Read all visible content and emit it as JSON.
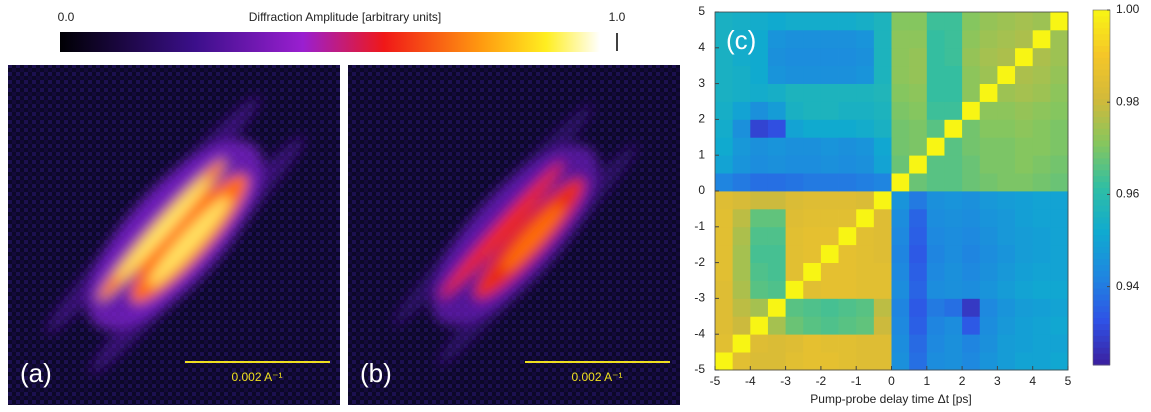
{
  "figure": {
    "colorbar_title": "Diffraction Amplitude [arbitrary units]",
    "colorbar_ticks": [
      {
        "value": 0,
        "label": "0.0"
      },
      {
        "value": 1,
        "label": "1.0"
      }
    ],
    "panels": [
      {
        "label": "(a)",
        "scale_bar": "0.002 A⁻¹"
      },
      {
        "label": "(b)",
        "scale_bar": "0.002 A⁻¹"
      }
    ]
  },
  "chart_data": {
    "type": "heatmap",
    "label": "(c)",
    "xlabel": "Pump-probe delay time Δt [ps]",
    "xlim": [
      -5,
      5
    ],
    "ylim": [
      -5,
      5
    ],
    "xticks": [
      -5,
      -4,
      -3,
      -2,
      -1,
      0,
      1,
      2,
      3,
      4,
      5
    ],
    "yticks": [
      -5,
      -4,
      -3,
      -2,
      -1,
      0,
      1,
      2,
      3,
      4,
      5
    ],
    "x": [
      -4.75,
      -4.25,
      -3.75,
      -3.25,
      -2.75,
      -2.25,
      -1.75,
      -1.25,
      -0.75,
      -0.25,
      0.25,
      0.75,
      1.25,
      1.75,
      2.25,
      2.75,
      3.25,
      3.75,
      4.25,
      4.75
    ],
    "y": [
      -4.75,
      -4.25,
      -3.75,
      -3.25,
      -2.75,
      -2.25,
      -1.75,
      -1.25,
      -0.75,
      -0.25,
      0.25,
      0.75,
      1.25,
      1.75,
      2.25,
      2.75,
      3.25,
      3.75,
      4.25,
      4.75
    ],
    "zlim": [
      0.923,
      1.0
    ],
    "zticks": [
      0.94,
      0.96,
      0.98,
      {
        "value": 1,
        "label": "1.00"
      }
    ],
    "colormap": [
      "#3b1f9e",
      "#2f52e6",
      "#1f86e0",
      "#10aad0",
      "#2fbea4",
      "#86c65e",
      "#d2b93a",
      "#f5c628",
      "#f8f514"
    ],
    "z": [
      [
        1,
        0.985,
        0.983,
        0.983,
        0.985,
        0.986,
        0.986,
        0.985,
        0.984,
        0.984,
        0.945,
        0.938,
        0.944,
        0.945,
        0.943,
        0.946,
        0.948,
        0.95,
        0.95,
        0.951
      ],
      [
        0.985,
        1,
        0.984,
        0.983,
        0.984,
        0.986,
        0.985,
        0.985,
        0.984,
        0.984,
        0.944,
        0.937,
        0.943,
        0.945,
        0.942,
        0.945,
        0.948,
        0.949,
        0.95,
        0.95
      ],
      [
        0.984,
        0.98,
        1,
        0.975,
        0.968,
        0.966,
        0.965,
        0.966,
        0.967,
        0.98,
        0.943,
        0.935,
        0.942,
        0.944,
        0.934,
        0.944,
        0.947,
        0.949,
        0.95,
        0.951
      ],
      [
        0.984,
        0.978,
        0.975,
        1,
        0.966,
        0.965,
        0.964,
        0.965,
        0.966,
        0.978,
        0.942,
        0.934,
        0.94,
        0.938,
        0.928,
        0.943,
        0.946,
        0.948,
        0.949,
        0.95
      ],
      [
        0.984,
        0.976,
        0.966,
        0.965,
        1,
        0.985,
        0.986,
        0.986,
        0.985,
        0.985,
        0.944,
        0.936,
        0.944,
        0.945,
        0.944,
        0.946,
        0.948,
        0.95,
        0.951,
        0.951
      ],
      [
        0.985,
        0.975,
        0.965,
        0.964,
        0.985,
        1,
        0.986,
        0.986,
        0.985,
        0.985,
        0.943,
        0.935,
        0.943,
        0.945,
        0.943,
        0.945,
        0.947,
        0.949,
        0.95,
        0.95
      ],
      [
        0.985,
        0.975,
        0.964,
        0.964,
        0.985,
        0.986,
        1,
        0.986,
        0.985,
        0.984,
        0.942,
        0.934,
        0.942,
        0.944,
        0.942,
        0.944,
        0.946,
        0.948,
        0.949,
        0.95
      ],
      [
        0.985,
        0.976,
        0.965,
        0.965,
        0.985,
        0.986,
        0.986,
        1,
        0.985,
        0.984,
        0.943,
        0.935,
        0.943,
        0.944,
        0.943,
        0.945,
        0.947,
        0.948,
        0.949,
        0.95
      ],
      [
        0.985,
        0.978,
        0.967,
        0.967,
        0.984,
        0.985,
        0.985,
        0.985,
        1,
        0.984,
        0.944,
        0.936,
        0.944,
        0.945,
        0.944,
        0.946,
        0.947,
        0.949,
        0.95,
        0.95
      ],
      [
        0.984,
        0.982,
        0.98,
        0.98,
        0.983,
        0.984,
        0.984,
        0.984,
        0.983,
        1,
        0.946,
        0.94,
        0.945,
        0.946,
        0.945,
        0.947,
        0.948,
        0.949,
        0.95,
        0.95
      ],
      [
        0.942,
        0.94,
        0.938,
        0.938,
        0.939,
        0.94,
        0.94,
        0.94,
        0.941,
        0.942,
        1,
        0.968,
        0.966,
        0.966,
        0.968,
        0.969,
        0.97,
        0.97,
        0.969,
        0.968
      ],
      [
        0.95,
        0.946,
        0.944,
        0.945,
        0.944,
        0.944,
        0.945,
        0.944,
        0.945,
        0.95,
        0.968,
        1,
        0.966,
        0.966,
        0.968,
        0.97,
        0.97,
        0.971,
        0.97,
        0.969
      ],
      [
        0.952,
        0.947,
        0.945,
        0.946,
        0.945,
        0.945,
        0.946,
        0.945,
        0.946,
        0.951,
        0.969,
        0.97,
        1,
        0.966,
        0.969,
        0.97,
        0.97,
        0.971,
        0.971,
        0.97
      ],
      [
        0.953,
        0.945,
        0.93,
        0.932,
        0.95,
        0.952,
        0.952,
        0.952,
        0.953,
        0.955,
        0.969,
        0.97,
        0.966,
        1,
        0.969,
        0.971,
        0.971,
        0.972,
        0.971,
        0.97
      ],
      [
        0.954,
        0.95,
        0.945,
        0.948,
        0.955,
        0.956,
        0.956,
        0.955,
        0.955,
        0.956,
        0.97,
        0.971,
        0.963,
        0.963,
        1,
        0.972,
        0.972,
        0.973,
        0.972,
        0.971
      ],
      [
        0.955,
        0.954,
        0.953,
        0.954,
        0.956,
        0.956,
        0.956,
        0.956,
        0.956,
        0.957,
        0.971,
        0.972,
        0.962,
        0.962,
        0.972,
        1,
        0.974,
        0.975,
        0.974,
        0.972
      ],
      [
        0.955,
        0.954,
        0.952,
        0.946,
        0.945,
        0.945,
        0.945,
        0.945,
        0.946,
        0.956,
        0.972,
        0.973,
        0.962,
        0.962,
        0.972,
        0.974,
        1,
        0.976,
        0.975,
        0.973
      ],
      [
        0.955,
        0.953,
        0.952,
        0.945,
        0.944,
        0.944,
        0.944,
        0.944,
        0.945,
        0.956,
        0.972,
        0.973,
        0.962,
        0.963,
        0.973,
        0.975,
        0.976,
        1,
        0.976,
        0.974
      ],
      [
        0.955,
        0.953,
        0.952,
        0.946,
        0.945,
        0.945,
        0.945,
        0.945,
        0.946,
        0.956,
        0.972,
        0.972,
        0.962,
        0.963,
        0.972,
        0.974,
        0.975,
        0.976,
        1,
        0.974
      ],
      [
        0.955,
        0.954,
        0.953,
        0.952,
        0.953,
        0.953,
        0.953,
        0.953,
        0.954,
        0.956,
        0.971,
        0.971,
        0.963,
        0.963,
        0.971,
        0.973,
        0.974,
        0.975,
        0.974,
        1
      ]
    ]
  }
}
